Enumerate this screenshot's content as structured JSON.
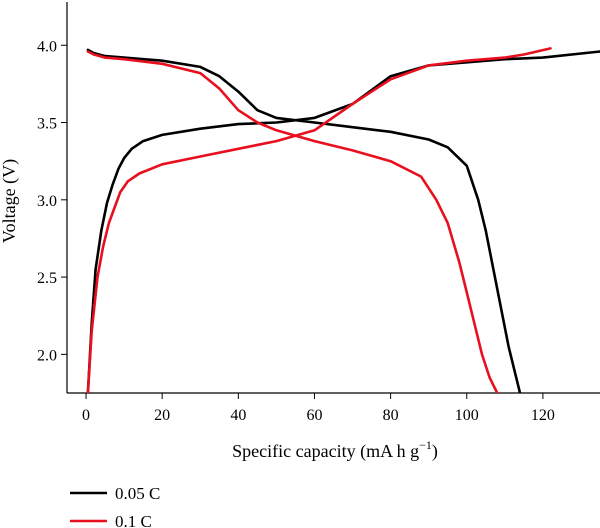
{
  "chart_data": {
    "type": "line",
    "title": "",
    "xlabel": "Specific capacity (mA h g",
    "xlabel_sup": "−1",
    "xlabel_suffix": ")",
    "ylabel": "Voltage (V)",
    "xlim": [
      -5,
      135
    ],
    "ylim": [
      1.75,
      4.28
    ],
    "x_ticks": [
      0,
      20,
      40,
      60,
      80,
      100,
      120
    ],
    "y_ticks": [
      2.0,
      2.5,
      3.0,
      3.5,
      4.0
    ],
    "y_tick_labels": [
      "2.0",
      "2.5",
      "3.0",
      "3.5",
      "4.0"
    ],
    "legend_placement": "bottom-left (below axes)",
    "series": [
      {
        "name": "0.05 C",
        "color": "#000000",
        "charge": {
          "x": [
            0.5,
            1.5,
            2.5,
            4,
            5.5,
            7,
            8.5,
            10,
            12,
            15,
            20,
            30,
            40,
            50,
            60,
            70,
            80,
            90,
            100,
            110,
            120,
            135
          ],
          "y": [
            1.75,
            2.2,
            2.55,
            2.8,
            2.98,
            3.1,
            3.2,
            3.27,
            3.33,
            3.38,
            3.42,
            3.46,
            3.49,
            3.5,
            3.53,
            3.62,
            3.8,
            3.87,
            3.89,
            3.91,
            3.92,
            3.96
          ]
        },
        "discharge": {
          "x": [
            0.5,
            2,
            5,
            10,
            20,
            30,
            35,
            40,
            45,
            50,
            60,
            70,
            80,
            90,
            95,
            100,
            103,
            105,
            107,
            109,
            111,
            112.5,
            114
          ],
          "y": [
            3.97,
            3.95,
            3.93,
            3.92,
            3.9,
            3.86,
            3.8,
            3.7,
            3.58,
            3.53,
            3.5,
            3.47,
            3.44,
            3.39,
            3.34,
            3.22,
            3.0,
            2.8,
            2.55,
            2.3,
            2.05,
            1.9,
            1.75
          ]
        }
      },
      {
        "name": "0.1 C",
        "color": "#e8101e",
        "charge": {
          "x": [
            0.5,
            1.5,
            3,
            4.5,
            6,
            7.5,
            9,
            11,
            14,
            20,
            30,
            40,
            50,
            60,
            70,
            80,
            90,
            100,
            110,
            115,
            122
          ],
          "y": [
            1.75,
            2.15,
            2.5,
            2.7,
            2.85,
            2.95,
            3.05,
            3.12,
            3.17,
            3.23,
            3.28,
            3.33,
            3.38,
            3.45,
            3.62,
            3.78,
            3.87,
            3.9,
            3.92,
            3.94,
            3.98
          ]
        },
        "discharge": {
          "x": [
            0.5,
            2,
            5,
            10,
            20,
            30,
            35,
            40,
            45,
            50,
            60,
            70,
            80,
            88,
            92,
            95,
            98,
            100,
            102,
            104,
            106,
            108
          ],
          "y": [
            3.96,
            3.94,
            3.92,
            3.91,
            3.88,
            3.82,
            3.72,
            3.58,
            3.5,
            3.45,
            3.38,
            3.32,
            3.25,
            3.15,
            3.0,
            2.85,
            2.6,
            2.4,
            2.2,
            2.0,
            1.85,
            1.75
          ]
        }
      }
    ]
  }
}
